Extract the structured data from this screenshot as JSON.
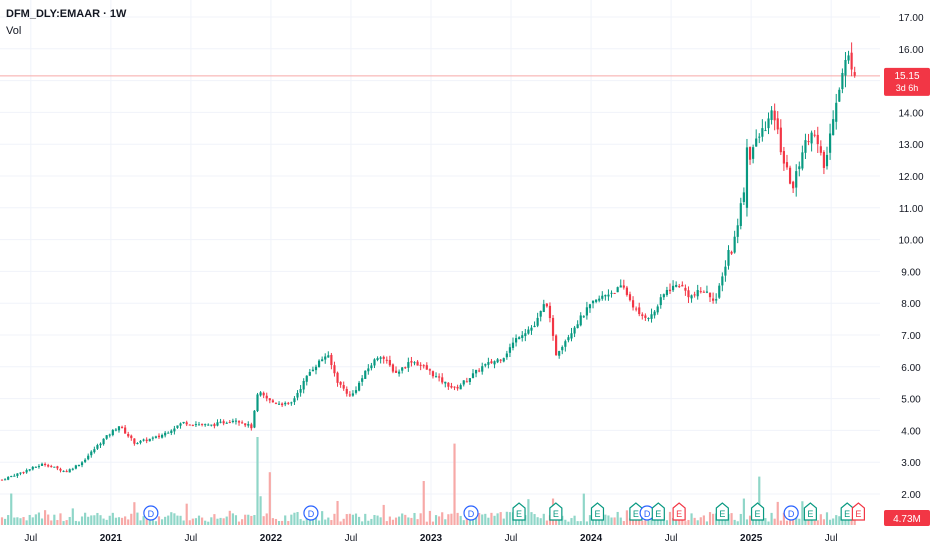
{
  "header": {
    "symbol": "DFM_DLY:EMAAR · 1W",
    "indicator": "Vol"
  },
  "price_badge": {
    "price": "15.15",
    "countdown": "3d 6h",
    "color": "#f23645"
  },
  "volume_badge": {
    "value": "4.73M",
    "color": "#f23645"
  },
  "colors": {
    "up": "#089981",
    "down": "#f23645",
    "vol_up": "#8fd6c8",
    "vol_down": "#f7a9a7",
    "grid": "#f0f3fa",
    "axis_text": "#131722",
    "price_line": "#f7a9a7"
  },
  "events": [
    {
      "type": "D",
      "time": 2021.25,
      "color": "#2962ff"
    },
    {
      "type": "D",
      "time": 2022.25,
      "color": "#2962ff"
    },
    {
      "type": "D",
      "time": 2023.25,
      "color": "#2962ff"
    },
    {
      "type": "E",
      "time": 2023.55,
      "color": "#089981"
    },
    {
      "type": "E",
      "time": 2023.78,
      "color": "#089981"
    },
    {
      "type": "E",
      "time": 2024.04,
      "color": "#089981"
    },
    {
      "type": "E",
      "time": 2024.28,
      "color": "#089981"
    },
    {
      "type": "D",
      "time": 2024.35,
      "color": "#2962ff"
    },
    {
      "type": "E",
      "time": 2024.42,
      "color": "#089981"
    },
    {
      "type": "E",
      "time": 2024.55,
      "color": "#f23645"
    },
    {
      "type": "E",
      "time": 2024.82,
      "color": "#089981"
    },
    {
      "type": "E",
      "time": 2025.04,
      "color": "#089981"
    },
    {
      "type": "D",
      "time": 2025.25,
      "color": "#2962ff"
    },
    {
      "type": "E",
      "time": 2025.37,
      "color": "#089981"
    },
    {
      "type": "E",
      "time": 2025.6,
      "color": "#089981"
    },
    {
      "type": "E",
      "time": 2025.67,
      "color": "#f23645"
    }
  ],
  "chart_data": {
    "type": "candlestick",
    "interval": "1W",
    "y_axis": {
      "min": 1.5,
      "max": 17.2,
      "ticks": [
        "2.00",
        "3.00",
        "4.00",
        "5.00",
        "6.00",
        "7.00",
        "8.00",
        "9.00",
        "10.00",
        "11.00",
        "12.00",
        "13.00",
        "14.00",
        "15.00",
        "16.00",
        "17.00"
      ]
    },
    "x_axis": {
      "min": 2020.32,
      "max": 2025.73,
      "ticks": [
        {
          "label": "Jul",
          "t": 2020.5
        },
        {
          "label": "2021",
          "t": 2021.0
        },
        {
          "label": "Jul",
          "t": 2021.5
        },
        {
          "label": "2022",
          "t": 2022.0
        },
        {
          "label": "Jul",
          "t": 2022.5
        },
        {
          "label": "2023",
          "t": 2023.0
        },
        {
          "label": "Jul",
          "t": 2023.5
        },
        {
          "label": "2024",
          "t": 2024.0
        },
        {
          "label": "Jul",
          "t": 2024.5
        },
        {
          "label": "2025",
          "t": 2025.0
        },
        {
          "label": "Jul",
          "t": 2025.5
        }
      ]
    },
    "last_price": 15.15,
    "price_path": [
      [
        2020.32,
        2.45
      ],
      [
        2020.45,
        2.7
      ],
      [
        2020.58,
        2.95
      ],
      [
        2020.72,
        2.7
      ],
      [
        2020.82,
        3.0
      ],
      [
        2020.95,
        3.7
      ],
      [
        2021.05,
        4.15
      ],
      [
        2021.15,
        3.6
      ],
      [
        2021.3,
        3.8
      ],
      [
        2021.45,
        4.25
      ],
      [
        2021.62,
        4.15
      ],
      [
        2021.78,
        4.35
      ],
      [
        2021.88,
        4.1
      ],
      [
        2021.92,
        5.2
      ],
      [
        2022.0,
        4.9
      ],
      [
        2022.12,
        4.8
      ],
      [
        2022.25,
        5.9
      ],
      [
        2022.35,
        6.4
      ],
      [
        2022.42,
        5.5
      ],
      [
        2022.5,
        5.05
      ],
      [
        2022.6,
        5.9
      ],
      [
        2022.68,
        6.4
      ],
      [
        2022.78,
        5.8
      ],
      [
        2022.88,
        6.2
      ],
      [
        2022.98,
        5.9
      ],
      [
        2023.05,
        5.6
      ],
      [
        2023.15,
        5.3
      ],
      [
        2023.25,
        5.7
      ],
      [
        2023.32,
        6.0
      ],
      [
        2023.45,
        6.3
      ],
      [
        2023.55,
        7.0
      ],
      [
        2023.65,
        7.3
      ],
      [
        2023.72,
        8.1
      ],
      [
        2023.78,
        6.4
      ],
      [
        2023.9,
        7.3
      ],
      [
        2024.0,
        7.95
      ],
      [
        2024.1,
        8.3
      ],
      [
        2024.2,
        8.5
      ],
      [
        2024.3,
        7.6
      ],
      [
        2024.38,
        7.6
      ],
      [
        2024.47,
        8.4
      ],
      [
        2024.55,
        8.6
      ],
      [
        2024.62,
        8.2
      ],
      [
        2024.7,
        8.4
      ],
      [
        2024.78,
        8.1
      ],
      [
        2024.82,
        8.8
      ],
      [
        2024.86,
        9.7
      ],
      [
        2024.88,
        9.6
      ],
      [
        2025.0,
        12.8
      ],
      [
        2025.08,
        13.5
      ],
      [
        2025.14,
        14.0
      ],
      [
        2025.2,
        12.5
      ],
      [
        2025.26,
        11.6
      ],
      [
        2025.32,
        12.8
      ],
      [
        2025.38,
        13.5
      ],
      [
        2025.46,
        12.2
      ],
      [
        2025.52,
        14.2
      ],
      [
        2025.6,
        15.8
      ],
      [
        2025.66,
        15.15
      ]
    ],
    "volume": {
      "base_millions": 3.0,
      "spikes_millions": [
        {
          "t": 2021.92,
          "v": 40
        },
        {
          "t": 2022.0,
          "v": 24
        },
        {
          "t": 2023.15,
          "v": 37
        },
        {
          "t": 2022.95,
          "v": 20
        },
        {
          "t": 2025.05,
          "v": 22
        }
      ]
    }
  }
}
